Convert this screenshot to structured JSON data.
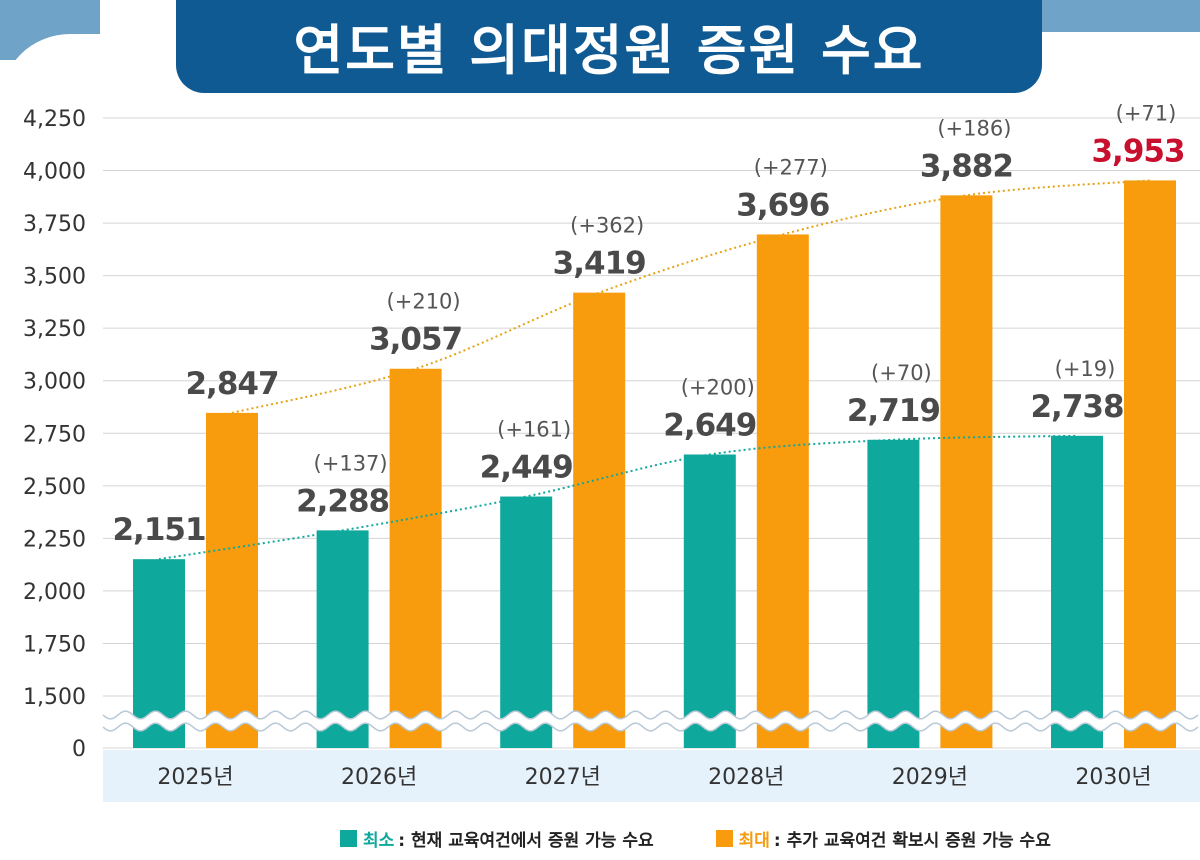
{
  "title": "연도별 의대정원 증원 수요",
  "colors": {
    "min": "#0fa89c",
    "max": "#f89b0c",
    "highlight": "#c8102e",
    "trend_min": "#0fa89c",
    "trend_max": "#e5a214",
    "band": "#e6f2fb"
  },
  "legend": {
    "min_key": "최소",
    "min_desc": ": 현재 교육여건에서 증원 가능 수요",
    "max_key": "최대",
    "max_desc": ": 추가 교육여건 확보시 증원 가능 수요"
  },
  "chart_data": {
    "type": "bar",
    "title": "연도별 의대정원 증원 수요",
    "categories": [
      "2025년",
      "2026년",
      "2027년",
      "2028년",
      "2029년",
      "2030년"
    ],
    "series": [
      {
        "name": "최소",
        "values": [
          2151,
          2288,
          2449,
          2649,
          2719,
          2738
        ],
        "labels": [
          "2,151",
          "2,288",
          "2,449",
          "2,649",
          "2,719",
          "2,738"
        ],
        "increments": [
          "",
          "(+137)",
          "(+161)",
          "(+200)",
          "(+70)",
          "(+19)"
        ]
      },
      {
        "name": "최대",
        "values": [
          2847,
          3057,
          3419,
          3696,
          3882,
          3953
        ],
        "labels": [
          "2,847",
          "3,057",
          "3,419",
          "3,696",
          "3,882",
          "3,953"
        ],
        "increments": [
          "",
          "(+210)",
          "(+362)",
          "(+277)",
          "(+186)",
          "(+71)"
        ]
      }
    ],
    "y_ticks": [
      4250,
      4000,
      3750,
      3500,
      3250,
      3000,
      2750,
      2500,
      2250,
      2000,
      1750,
      1500,
      0
    ],
    "y_tick_labels": [
      "4,250",
      "4,000",
      "3,750",
      "3,500",
      "3,250",
      "3,000",
      "2,750",
      "2,500",
      "2,250",
      "2,000",
      "1,750",
      "1,500",
      "0"
    ],
    "ylim": [
      1500,
      4250
    ],
    "axis_break": true,
    "grid": true,
    "trend_lines": true,
    "highlight_label": "3,953"
  }
}
